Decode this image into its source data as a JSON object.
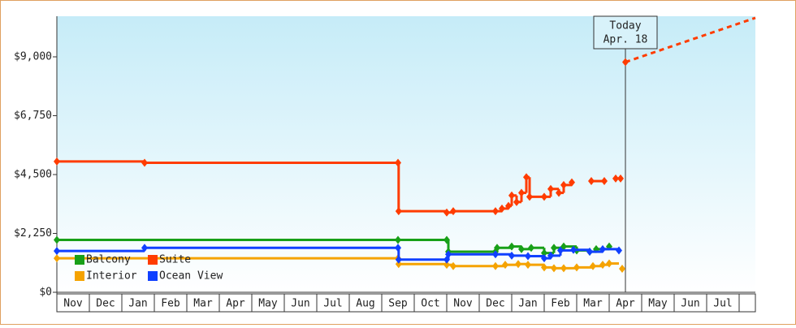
{
  "chart_data": {
    "type": "step-line",
    "categories": [
      "Nov",
      "Dec",
      "Jan",
      "Feb",
      "Mar",
      "Apr",
      "May",
      "Jun",
      "Jul",
      "Aug",
      "Sep",
      "Oct",
      "Nov",
      "Dec",
      "Jan",
      "Feb",
      "Mar",
      "Apr",
      "May",
      "Jun",
      "Jul"
    ],
    "xlim": [
      0,
      21.5
    ],
    "ylim": [
      0,
      10552
    ],
    "yticks": [
      {
        "value": 0,
        "label": "$0"
      },
      {
        "value": 2250,
        "label": "$2,250"
      },
      {
        "value": 4500,
        "label": "$4,500"
      },
      {
        "value": 6750,
        "label": "$6,750"
      },
      {
        "value": 9000,
        "label": "$9,000"
      }
    ],
    "legend": "lower left",
    "series": [
      {
        "name": "Balcony",
        "color": "#18a018",
        "x": [
          0,
          10.5,
          12,
          12.05,
          13.5,
          13.55,
          14.0,
          14.3,
          14.6,
          15.0,
          15.3,
          15.6,
          16.0,
          16.4,
          16.6,
          17.0
        ],
        "values": [
          2000,
          2000,
          2000,
          1550,
          1550,
          1700,
          1750,
          1650,
          1700,
          1500,
          1700,
          1750,
          1600,
          1550,
          1650,
          1750
        ]
      },
      {
        "name": "Suite",
        "color": "#ff3c00",
        "x": [
          0,
          2.7,
          10.5,
          10.52,
          12,
          12.2,
          13.5,
          13.7,
          13.9,
          14.0,
          14.15,
          14.3,
          14.45,
          14.55,
          15.0,
          15.2,
          15.45,
          15.6,
          15.85,
          15.9,
          16.45,
          16.85,
          16.9,
          17.2,
          17.35,
          17.4,
          17.5
        ],
        "values": [
          5000,
          4950,
          4950,
          3100,
          3050,
          3100,
          3100,
          3200,
          3300,
          3700,
          3450,
          3800,
          4400,
          3650,
          3650,
          3950,
          3800,
          4100,
          4200,
          null,
          4250,
          4250,
          null,
          4350,
          4350,
          null,
          8800
        ]
      },
      {
        "name": "Interior",
        "color": "#f5a300",
        "x": [
          0,
          10.5,
          10.52,
          12,
          12.2,
          13.5,
          13.8,
          14.2,
          14.5,
          15.0,
          15.3,
          15.6,
          16.0,
          16.5,
          16.8,
          17.0,
          17.3,
          17.4
        ],
        "values": [
          1300,
          1300,
          1080,
          1050,
          1000,
          1000,
          1050,
          1080,
          1050,
          950,
          920,
          920,
          950,
          1000,
          1050,
          1100,
          null,
          900
        ]
      },
      {
        "name": "Ocean View",
        "color": "#1040ff",
        "x": [
          0,
          2.7,
          10.5,
          10.52,
          12,
          12.05,
          13.5,
          14.0,
          14.5,
          15.0,
          15.2,
          15.5,
          15.9,
          16.4,
          16.8,
          17.3
        ],
        "values": [
          1580,
          1700,
          1700,
          1250,
          1250,
          1450,
          1450,
          1400,
          1380,
          1300,
          1400,
          1600,
          1620,
          1550,
          1650,
          1600
        ]
      }
    ],
    "projection": {
      "color": "#ff3c00",
      "x": [
        17.5,
        21.5
      ],
      "values": [
        8800,
        10490
      ]
    },
    "annotation": {
      "x": 17.5,
      "lines": [
        "Today",
        "Apr. 18"
      ]
    }
  }
}
